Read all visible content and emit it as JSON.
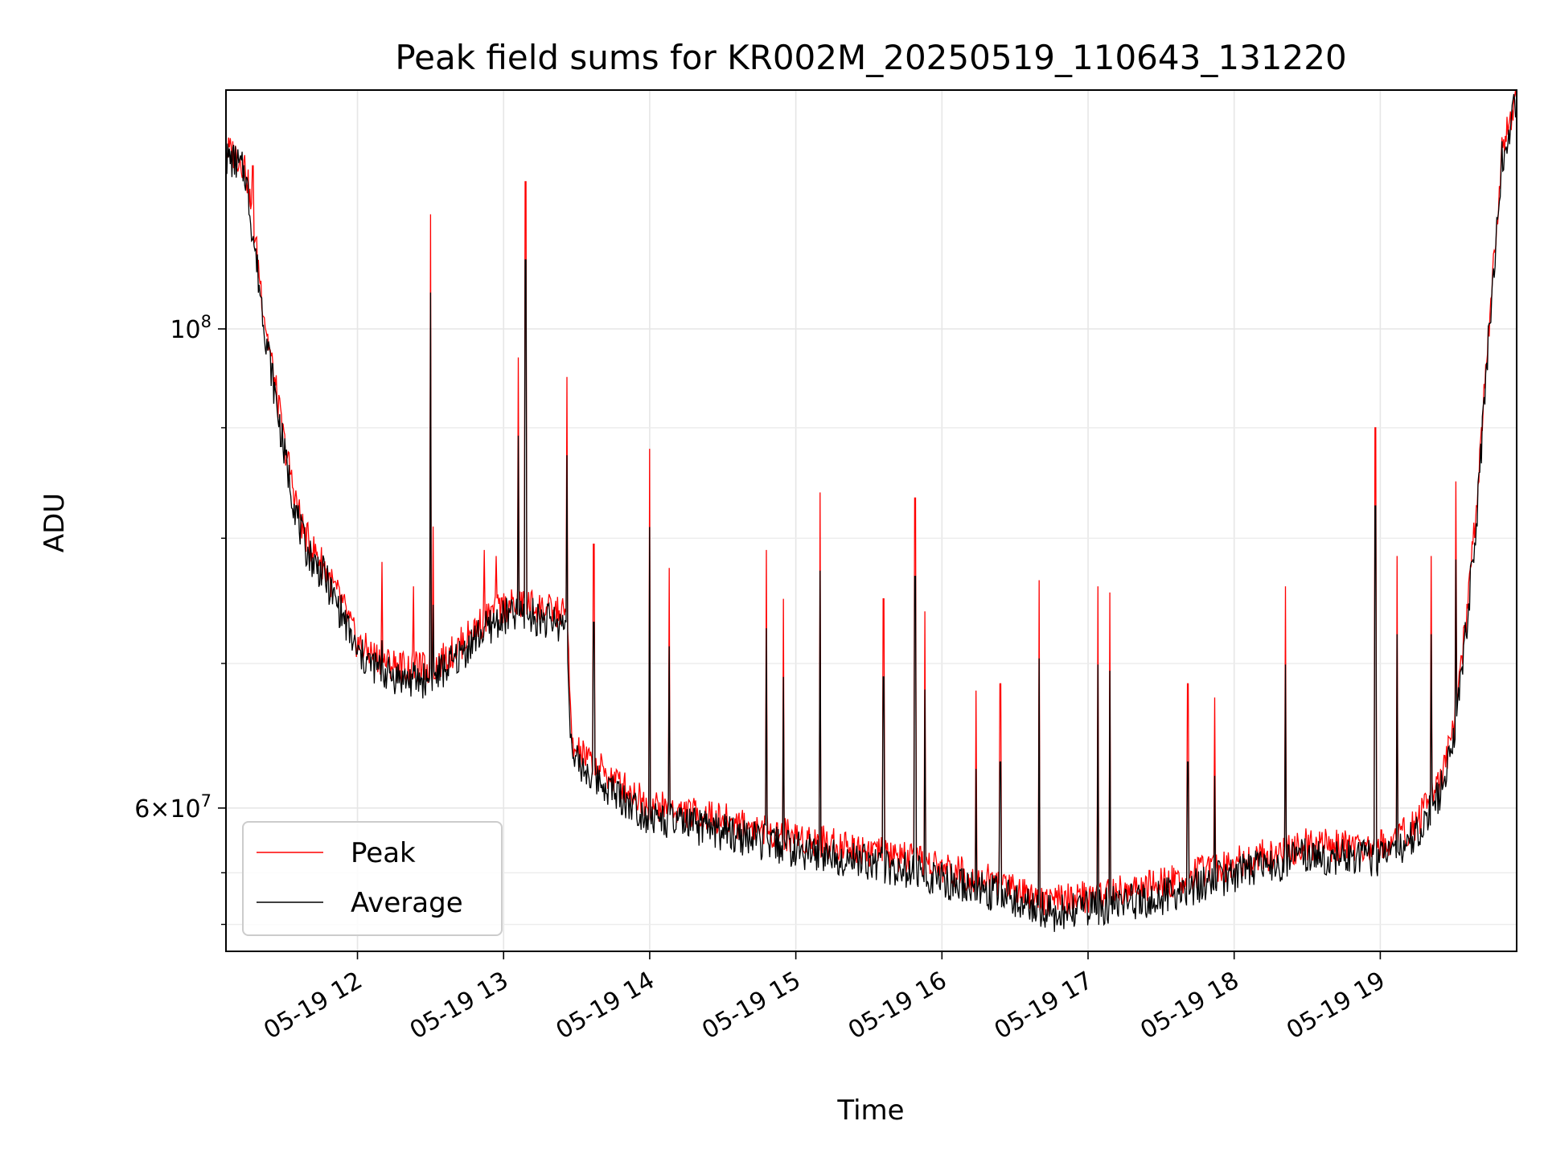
{
  "chart_data": {
    "type": "line",
    "title": "Peak field sums for KR002M_20250519_110643_131220",
    "xlabel": "Time",
    "ylabel": "ADU",
    "y_scale": "log",
    "ylim": [
      51500000,
      129000000
    ],
    "xlim": [
      "2025-05-19 11:06",
      "2025-05-19 19:56"
    ],
    "grid": true,
    "legend": "lower-left",
    "x_ticks": [
      {
        "t": "2025-05-19 12:00",
        "label": "05-19 12"
      },
      {
        "t": "2025-05-19 13:00",
        "label": "05-19 13"
      },
      {
        "t": "2025-05-19 14:00",
        "label": "05-19 14"
      },
      {
        "t": "2025-05-19 15:00",
        "label": "05-19 15"
      },
      {
        "t": "2025-05-19 16:00",
        "label": "05-19 16"
      },
      {
        "t": "2025-05-19 17:00",
        "label": "05-19 17"
      },
      {
        "t": "2025-05-19 18:00",
        "label": "05-19 18"
      },
      {
        "t": "2025-05-19 19:00",
        "label": "05-19 19"
      }
    ],
    "y_major_ticks": [
      {
        "value": 100000000,
        "mantissa": "",
        "base": "10",
        "exp": "8"
      },
      {
        "value": 60000000,
        "mantissa": "6×",
        "base": "10",
        "exp": "7"
      }
    ],
    "y_minor_ticks": [
      53000000,
      56000000,
      70000000,
      80000000,
      90000000
    ],
    "series": [
      {
        "name": "Peak",
        "color": "#ff0000",
        "x": [
          "2025-05-19 11:06",
          "2025-05-19 11:10",
          "2025-05-19 11:14",
          "2025-05-19 11:18",
          "2025-05-19 11:22",
          "2025-05-19 11:26",
          "2025-05-19 11:30",
          "2025-05-19 11:34",
          "2025-05-19 11:38",
          "2025-05-19 11:42",
          "2025-05-19 11:46",
          "2025-05-19 11:50",
          "2025-05-19 11:54",
          "2025-05-19 12:00",
          "2025-05-19 12:10",
          "2025-05-19 12:20",
          "2025-05-19 12:30",
          "2025-05-19 12:40",
          "2025-05-19 12:50",
          "2025-05-19 13:00",
          "2025-05-19 13:10",
          "2025-05-19 13:20",
          "2025-05-19 13:26",
          "2025-05-19 13:28",
          "2025-05-19 13:40",
          "2025-05-19 14:00",
          "2025-05-19 14:30",
          "2025-05-19 15:00",
          "2025-05-19 15:30",
          "2025-05-19 16:00",
          "2025-05-19 16:30",
          "2025-05-19 16:45",
          "2025-05-19 17:00",
          "2025-05-19 17:30",
          "2025-05-19 18:00",
          "2025-05-19 18:30",
          "2025-05-19 19:00",
          "2025-05-19 19:15",
          "2025-05-19 19:25",
          "2025-05-19 19:30",
          "2025-05-19 19:35",
          "2025-05-19 19:40",
          "2025-05-19 19:45",
          "2025-05-19 19:50",
          "2025-05-19 19:56"
        ],
        "y": [
          121000000,
          120500000,
          119000000,
          110000000,
          101000000,
          94500000,
          88500000,
          84000000,
          80500000,
          79000000,
          77800000,
          76000000,
          74500000,
          71500000,
          70200000,
          69700000,
          69600000,
          71000000,
          73000000,
          74400000,
          74600000,
          74000000,
          73800000,
          64000000,
          62500000,
          60200000,
          59300000,
          58200000,
          57400000,
          56300000,
          55200000,
          54300000,
          54600000,
          55300000,
          56600000,
          57700000,
          57600000,
          59000000,
          62000000,
          65000000,
          73000000,
          84000000,
          102000000,
          121000000,
          128500000
        ]
      },
      {
        "name": "Average",
        "color": "#000000",
        "x": [
          "2025-05-19 11:06",
          "2025-05-19 11:10",
          "2025-05-19 11:14",
          "2025-05-19 11:18",
          "2025-05-19 11:22",
          "2025-05-19 11:26",
          "2025-05-19 11:30",
          "2025-05-19 11:34",
          "2025-05-19 11:38",
          "2025-05-19 11:42",
          "2025-05-19 11:46",
          "2025-05-19 11:50",
          "2025-05-19 11:54",
          "2025-05-19 12:00",
          "2025-05-19 12:10",
          "2025-05-19 12:20",
          "2025-05-19 12:30",
          "2025-05-19 12:40",
          "2025-05-19 12:50",
          "2025-05-19 13:00",
          "2025-05-19 13:10",
          "2025-05-19 13:20",
          "2025-05-19 13:26",
          "2025-05-19 13:28",
          "2025-05-19 13:40",
          "2025-05-19 14:00",
          "2025-05-19 14:30",
          "2025-05-19 15:00",
          "2025-05-19 15:30",
          "2025-05-19 16:00",
          "2025-05-19 16:30",
          "2025-05-19 16:45",
          "2025-05-19 17:00",
          "2025-05-19 17:30",
          "2025-05-19 18:00",
          "2025-05-19 18:30",
          "2025-05-19 19:00",
          "2025-05-19 19:15",
          "2025-05-19 19:25",
          "2025-05-19 19:30",
          "2025-05-19 19:35",
          "2025-05-19 19:40",
          "2025-05-19 19:45",
          "2025-05-19 19:50",
          "2025-05-19 19:56"
        ],
        "y": [
          120000000,
          119500000,
          118000000,
          108500000,
          100000000,
          93500000,
          87500000,
          83000000,
          79500000,
          78000000,
          77000000,
          75200000,
          73600000,
          70700000,
          69400000,
          68800000,
          68800000,
          70200000,
          72200000,
          73600000,
          73700000,
          73200000,
          72900000,
          63200000,
          61700000,
          59400000,
          58500000,
          57400000,
          56700000,
          55600000,
          54500000,
          53600000,
          53900000,
          54600000,
          55900000,
          57000000,
          56900000,
          58300000,
          61200000,
          64200000,
          72000000,
          83000000,
          101000000,
          120000000,
          127500000
        ]
      },
      {
        "name": "",
        "color": "#ff0000",
        "role": "spikes",
        "x": [
          "2025-05-19 11:17",
          "2025-05-19 12:10",
          "2025-05-19 12:23",
          "2025-05-19 12:30",
          "2025-05-19 12:31",
          "2025-05-19 12:52",
          "2025-05-19 12:57",
          "2025-05-19 13:06",
          "2025-05-19 13:09",
          "2025-05-19 13:26",
          "2025-05-19 13:37",
          "2025-05-19 14:00",
          "2025-05-19 14:08",
          "2025-05-19 14:48",
          "2025-05-19 14:55",
          "2025-05-19 15:10",
          "2025-05-19 15:36",
          "2025-05-19 15:49",
          "2025-05-19 15:53",
          "2025-05-19 16:14",
          "2025-05-19 16:24",
          "2025-05-19 16:40",
          "2025-05-19 17:04",
          "2025-05-19 17:09",
          "2025-05-19 17:41",
          "2025-05-19 17:52",
          "2025-05-19 18:21",
          "2025-05-19 18:58",
          "2025-05-19 19:07",
          "2025-05-19 19:21",
          "2025-05-19 19:31"
        ],
        "y": [
          119000000,
          78000000,
          76000000,
          113000000,
          81000000,
          79000000,
          78500000,
          97000000,
          117000000,
          95000000,
          79500000,
          88000000,
          77500000,
          79000000,
          75000000,
          84000000,
          75000000,
          83500000,
          74000000,
          68000000,
          68500000,
          76500000,
          76000000,
          75500000,
          68500000,
          67500000,
          76000000,
          90000000,
          78500000,
          78500000,
          85000000
        ]
      }
    ]
  }
}
